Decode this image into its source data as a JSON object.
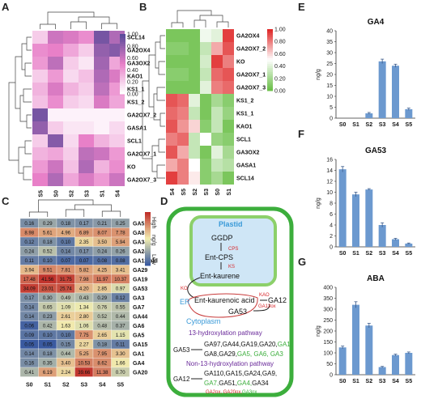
{
  "panels": {
    "a": "A",
    "b": "B",
    "c": "C",
    "d": "D",
    "e": "E",
    "f": "F",
    "g": "G"
  },
  "colors": {
    "heatA_low": "#ffffff",
    "heatA_mid": "#e880c8",
    "heatA_high": "#5a4a9a",
    "heatB_low": "#6cc04a",
    "heatB_mid": "#ffffff",
    "heatB_high": "#e02a2a",
    "heatC_low": "#3a5aa0",
    "heatC_mid": "#f2eeb0",
    "heatC_high": "#c0302a",
    "bar": "#6c99cf"
  },
  "chart_data": [
    {
      "type": "heatmap",
      "id": "A",
      "rows": [
        "SCL14",
        "GA2OX4",
        "GA3OX2",
        "KAO1",
        "KS1_1",
        "KS1_2",
        "GA2OX7_2",
        "GASA1",
        "SCL1",
        "GA2OX7_1",
        "KO",
        "GA2OX7_3"
      ],
      "columns": [
        "S5",
        "S0",
        "S2",
        "S3",
        "S1",
        "S4"
      ],
      "values": [
        [
          0.2,
          0.6,
          0.55,
          0.45,
          0.9,
          0.7
        ],
        [
          0.45,
          0.5,
          0.35,
          0.2,
          0.8,
          0.85
        ],
        [
          0.4,
          0.65,
          0.2,
          0.1,
          0.75,
          0.35
        ],
        [
          0.2,
          0.4,
          0.15,
          0.25,
          0.7,
          0.55
        ],
        [
          0.3,
          0.55,
          0.3,
          0.2,
          0.65,
          0.4
        ],
        [
          0.25,
          0.45,
          0.2,
          0.15,
          0.55,
          0.35
        ],
        [
          0.9,
          0.05,
          0.05,
          0.05,
          0.05,
          0.05
        ],
        [
          0.8,
          0.2,
          0.1,
          0.1,
          0.05,
          0.15
        ],
        [
          0.2,
          0.85,
          0.15,
          0.5,
          0.3,
          0.2
        ],
        [
          0.3,
          0.35,
          0.2,
          0.65,
          0.6,
          0.4
        ],
        [
          0.4,
          0.6,
          0.25,
          0.7,
          0.3,
          0.45
        ],
        [
          0.5,
          0.7,
          0.35,
          0.55,
          0.4,
          0.6
        ]
      ],
      "colorbar": {
        "ticks": [
          "1.00",
          "0.80",
          "0.60",
          "0.40",
          "0.20",
          "0.00"
        ]
      }
    },
    {
      "type": "heatmap",
      "id": "B",
      "rows": [
        "GA2OX4",
        "GA2OX7_2",
        "KO",
        "GA2OX7_1",
        "GA2OX7_3",
        "KS1_2",
        "KS1_1",
        "KAO1",
        "SCL1",
        "GA3OX2",
        "GASA1",
        "SCL14"
      ],
      "columns": [
        "S4",
        "S5",
        "S2",
        "S3",
        "S0",
        "S1"
      ],
      "values": [
        [
          0.05,
          0.05,
          0.05,
          0.45,
          0.4,
          0.95
        ],
        [
          0.1,
          0.1,
          0.05,
          0.3,
          0.7,
          0.9
        ],
        [
          0.05,
          0.05,
          0.05,
          0.35,
          0.95,
          0.8
        ],
        [
          0.1,
          0.1,
          0.05,
          0.3,
          0.85,
          0.9
        ],
        [
          0.05,
          0.05,
          0.05,
          0.4,
          0.8,
          0.85
        ],
        [
          0.9,
          0.85,
          0.4,
          0.05,
          0.2,
          0.1
        ],
        [
          0.85,
          0.8,
          0.3,
          0.05,
          0.3,
          0.15
        ],
        [
          0.9,
          0.75,
          0.6,
          0.1,
          0.3,
          0.05
        ],
        [
          0.8,
          0.85,
          0.3,
          0.5,
          0.15,
          0.1
        ],
        [
          0.9,
          0.7,
          0.3,
          0.05,
          0.4,
          0.2
        ],
        [
          0.7,
          0.8,
          0.5,
          0.1,
          0.3,
          0.25
        ],
        [
          0.95,
          0.8,
          0.55,
          0.1,
          0.2,
          0.05
        ]
      ],
      "colorbar": {
        "ticks": [
          "1.00",
          "0.80",
          "0.60",
          "0.40",
          "0.20",
          "0.00"
        ]
      }
    },
    {
      "type": "heatmap",
      "id": "C",
      "rows": [
        "GA51",
        "GA8",
        "GA34",
        "GA24",
        "GA12-ald",
        "GA29",
        "GA19",
        "GA53",
        "GA3",
        "GA7",
        "GA44",
        "GA6",
        "GA5",
        "GA15",
        "GA1",
        "GA4",
        "GA20"
      ],
      "columns": [
        "S0",
        "S1",
        "S2",
        "S3",
        "S4",
        "S5"
      ],
      "values": [
        [
          0.16,
          0.29,
          0.18,
          0.17,
          0.21,
          0.25
        ],
        [
          8.98,
          5.61,
          4.96,
          6.89,
          8.07,
          7.78
        ],
        [
          0.12,
          0.18,
          0.1,
          2.35,
          3.5,
          5.94
        ],
        [
          0.24,
          0.52,
          0.14,
          0.17,
          0.24,
          0.26
        ],
        [
          0.11,
          0.1,
          0.07,
          0.07,
          0.08,
          0.08
        ],
        [
          3.94,
          9.51,
          7.81,
          5.82,
          4.25,
          3.41
        ],
        [
          17.48,
          41.56,
          31.75,
          7.98,
          11.97,
          10.37
        ],
        [
          34.09,
          23.01,
          25.74,
          4.2,
          2.85,
          0.97
        ],
        [
          0.17,
          0.3,
          0.49,
          0.43,
          0.29,
          0.12
        ],
        [
          0.14,
          0.65,
          1.09,
          1.34,
          0.76,
          0.55
        ],
        [
          0.14,
          0.23,
          2.61,
          2.8,
          0.52,
          0.44
        ],
        [
          0.06,
          0.42,
          1.63,
          1.06,
          0.48,
          0.37
        ],
        [
          0.09,
          0.1,
          0.1,
          7.75,
          2.65,
          1.15
        ],
        [
          0.05,
          0.05,
          0.15,
          2.27,
          0.18,
          0.11
        ],
        [
          0.14,
          0.18,
          0.44,
          5.25,
          7.95,
          3.3
        ],
        [
          0.16,
          0.35,
          3.4,
          10.53,
          8.62,
          1.66
        ],
        [
          0.41,
          6.19,
          2.24,
          39.66,
          11.38,
          0.7
        ]
      ],
      "scale": {
        "high": "High",
        "unit": "ng/g",
        "low": "Low"
      }
    },
    {
      "type": "bar",
      "id": "E",
      "title": "GA4",
      "ylabel": "ng/g",
      "categories": [
        "S0",
        "S1",
        "S2",
        "S3",
        "S4",
        "S5"
      ],
      "values": [
        0,
        0,
        2.2,
        26,
        24,
        4.1
      ],
      "errors": [
        0,
        0,
        0.4,
        1.0,
        0.7,
        0.5
      ],
      "yticks": [
        0,
        5,
        10,
        15,
        20,
        25,
        30,
        35,
        40
      ],
      "ylim": [
        0,
        40
      ]
    },
    {
      "type": "bar",
      "id": "F",
      "title": "GA53",
      "ylabel": "ng/g",
      "categories": [
        "S0",
        "S1",
        "S2",
        "S3",
        "S4",
        "S5"
      ],
      "values": [
        14.2,
        9.6,
        10.5,
        4.0,
        1.4,
        0.6
      ],
      "errors": [
        0.5,
        0.4,
        0.15,
        0.4,
        0.15,
        0.1
      ],
      "yticks": [
        0,
        2,
        4,
        6,
        8,
        10,
        12,
        14,
        16
      ],
      "ylim": [
        0,
        16
      ]
    },
    {
      "type": "bar",
      "id": "G",
      "title": "ABA",
      "ylabel": "ng/g",
      "categories": [
        "S0",
        "S1",
        "S2",
        "S3",
        "S4",
        "S5"
      ],
      "values": [
        125,
        320,
        225,
        35,
        90,
        100
      ],
      "errors": [
        6,
        14,
        10,
        3,
        4,
        4
      ],
      "yticks": [
        0,
        50,
        100,
        150,
        200,
        250,
        300,
        350,
        400
      ],
      "ylim": [
        0,
        400
      ]
    }
  ],
  "diagram": {
    "plastid": "Plastid",
    "ggdp": "GGDP",
    "cps": "CPS",
    "ent_cps": "Ent-CPS",
    "ks": "KS",
    "ent_kaurene": "Ent-kaurene",
    "ko": "KO",
    "er": "ER",
    "kaurenoic": "Ent-kaurenoic acid",
    "kao": "KAO",
    "ga12": "GA12",
    "ga53": "GA53",
    "ga13ox": "GA13ox",
    "cytoplasm": "Cytoplasm",
    "path13": "13-hydroxylation pathway",
    "ga53_src": "GA53",
    "p13_line1_black": "GA97,GA44,GA19,GA20,",
    "p13_line1_green": "GA1,",
    "p13_line2_black": "GA8,GA29,",
    "p13_line2_green": "GA5, GA6, GA3",
    "pathnon13": "Non-13-hydroxylation pathway",
    "ga12_src": "GA12",
    "n13_line1": "GA110,GA15,GA24,GA9,",
    "n13_line2_green": "GA7,",
    "n13_line2_black": "GA51,",
    "n13_line2_green2": "GA4,",
    "n13_line2_black2": "GA34",
    "legend_red": "GA2ox, GA20ox,",
    "legend_green": "GA3ox"
  }
}
